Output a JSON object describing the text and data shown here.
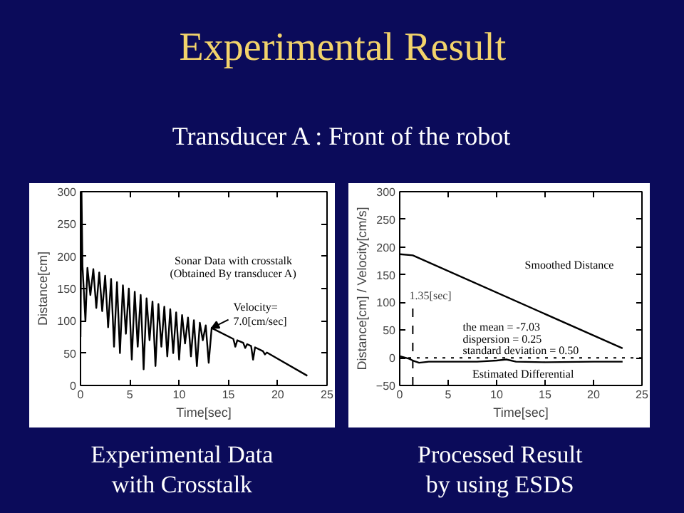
{
  "chart_data": [
    {
      "type": "other",
      "title": "Experimental Result",
      "subtitle": "Transducer A : Front of the robot"
    },
    {
      "type": "line",
      "xlabel": "Time[sec]",
      "ylabel": "Distance[cm]",
      "xlim": [
        0,
        25
      ],
      "ylim": [
        0,
        300
      ],
      "xticks": [
        0,
        5,
        10,
        15,
        20,
        25
      ],
      "yticks": [
        0,
        50,
        100,
        150,
        200,
        250,
        300
      ],
      "grid": false,
      "series": [
        {
          "name": "Sonar Data with crosstalk\n(Obtained By transducer A)",
          "color": "#000000",
          "x": [
            0,
            0.1,
            0.2,
            0.5,
            0.7,
            1,
            1.3,
            1.6,
            1.9,
            2.2,
            2.5,
            2.8,
            3.1,
            3.4,
            3.7,
            4,
            4.3,
            4.6,
            4.9,
            5.2,
            5.5,
            5.8,
            6.1,
            6.4,
            6.7,
            7,
            7.3,
            7.6,
            7.9,
            8.2,
            8.5,
            8.8,
            9.1,
            9.4,
            9.7,
            10,
            10.3,
            10.6,
            10.9,
            11.2,
            11.5,
            11.8,
            12.1,
            12.4,
            12.7,
            13,
            13.3,
            15.5,
            15.7,
            15.9,
            16.5,
            16.7,
            16.9,
            17.3,
            17.5,
            17.7,
            18.5,
            18.7,
            18.9,
            23
          ],
          "values": [
            75,
            300,
            185,
            100,
            182,
            140,
            180,
            120,
            175,
            115,
            170,
            90,
            165,
            60,
            160,
            50,
            155,
            80,
            150,
            40,
            145,
            60,
            140,
            25,
            135,
            70,
            130,
            30,
            126,
            60,
            122,
            45,
            118,
            50,
            113,
            40,
            109,
            65,
            105,
            45,
            101,
            30,
            97,
            70,
            93,
            35,
            89,
            72,
            60,
            70,
            66,
            58,
            64,
            61,
            40,
            59,
            53,
            48,
            51,
            15
          ]
        }
      ],
      "annotations": [
        {
          "text": "Velocity=\n7.0[cm/sec]",
          "x": 13.3,
          "y": 89
        },
        "Experimental Data\nwith Crosstalk"
      ]
    },
    {
      "type": "line",
      "xlabel": "Time[sec]",
      "ylabel": "Distance[cm] / Velocity[cm/s]",
      "xlim": [
        0,
        25
      ],
      "ylim": [
        -50,
        300
      ],
      "xticks": [
        0,
        5,
        10,
        15,
        20,
        25
      ],
      "yticks": [
        -50,
        0,
        50,
        100,
        150,
        200,
        250,
        300
      ],
      "grid": false,
      "series": [
        {
          "name": "Smoothed Distance",
          "color": "#000000",
          "x": [
            0,
            1.35,
            23
          ],
          "values": [
            187,
            185,
            17
          ]
        },
        {
          "name": "Estimated Differential",
          "color": "#000000",
          "x": [
            0,
            1,
            1.35,
            2,
            3,
            5,
            8,
            10,
            11,
            12,
            15,
            20,
            23
          ],
          "values": [
            3,
            -2,
            -5,
            -9,
            -7,
            -7,
            -7,
            -5,
            -3,
            -7,
            -8,
            -7,
            -7
          ]
        }
      ],
      "ref_lines": [
        {
          "axis": "x",
          "value": 1.35,
          "label": "1.35[sec]",
          "line_style": "dashed"
        },
        {
          "axis": "y",
          "value": 0,
          "line_style": "dotted"
        }
      ],
      "annotations": [
        "the mean = -7.03",
        "dispersion = 0.25",
        "standard deviation = 0.50",
        "Processed Result\nby using ESDS"
      ]
    }
  ]
}
